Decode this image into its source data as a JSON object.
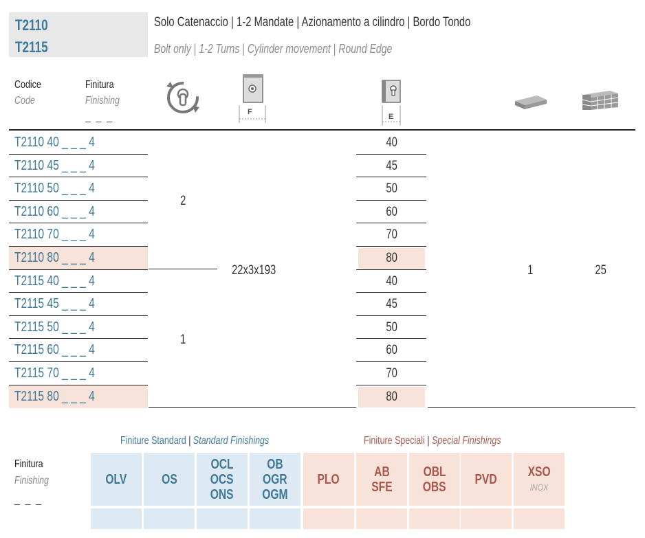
{
  "header": {
    "code_line_1": "T2110",
    "code_line_2": "T2115",
    "title_it": [
      "Solo Catenaccio",
      "1-2 Mandate",
      "Azionamento a cilindro",
      "Bordo Tondo"
    ],
    "title_en": [
      "Bolt only",
      "1-2 Turns",
      "Cylinder movement",
      "Round Edge"
    ],
    "separator": "|"
  },
  "columns": {
    "code_label": "Codice",
    "code_label_en": "Code",
    "finish_label": "Finitura",
    "finish_label_en": "Finishing",
    "finish_blank": "_ _ _",
    "f_label": "F",
    "e_label": "E"
  },
  "rows": [
    {
      "code": "T2110 40 _ _ _ 4",
      "e": "40",
      "highlight": false
    },
    {
      "code": "T2110 45 _ _ _ 4",
      "e": "45",
      "highlight": false
    },
    {
      "code": "T2110 50 _ _ _ 4",
      "e": "50",
      "highlight": false
    },
    {
      "code": "T2110 60 _ _ _ 4",
      "e": "60",
      "highlight": false
    },
    {
      "code": "T2110 70 _ _ _ 4",
      "e": "70",
      "highlight": false
    },
    {
      "code": "T2110 80 _ _ _ 4",
      "e": "80",
      "highlight": true
    },
    {
      "code": "T2115 40 _ _ _ 4",
      "e": "40",
      "highlight": false
    },
    {
      "code": "T2115 45 _ _ _ 4",
      "e": "45",
      "highlight": false
    },
    {
      "code": "T2115 50 _ _ _ 4",
      "e": "50",
      "highlight": false
    },
    {
      "code": "T2115 60 _ _ _ 4",
      "e": "60",
      "highlight": false
    },
    {
      "code": "T2115 70 _ _ _ 4",
      "e": "70",
      "highlight": false
    },
    {
      "code": "T2115 80 _ _ _ 4",
      "e": "80",
      "highlight": true
    }
  ],
  "values": {
    "turns_group1": "2",
    "turns_group2": "1",
    "faceplate": "22x3x193",
    "pack_qty": "1",
    "box_qty": "25"
  },
  "finishes": {
    "label": "Finitura",
    "label_en": "Finishing",
    "blank": "_ _ _",
    "standard_title": "Finiture Standard",
    "standard_title_en": "Standard Finishings",
    "special_title": "Finiture Speciali",
    "special_title_en": "Special Finishings",
    "standard": [
      {
        "lines": [
          "OLV"
        ]
      },
      {
        "lines": [
          "OS"
        ]
      },
      {
        "lines": [
          "OCL",
          "OCS",
          "ONS"
        ]
      },
      {
        "lines": [
          "OB",
          "OGR",
          "OGM"
        ]
      }
    ],
    "special": [
      {
        "lines": [
          "PLO"
        ]
      },
      {
        "lines": [
          "AB",
          "SFE"
        ]
      },
      {
        "lines": [
          "OBL",
          "OBS"
        ]
      },
      {
        "lines": [
          "PVD"
        ]
      },
      {
        "lines": [
          "XSO"
        ],
        "sub": "INOX"
      }
    ]
  },
  "colors": {
    "blue_text": "#3e7896",
    "red_text": "#a9574d",
    "blue_bg": "#deeaf3",
    "pink_bg": "#f7e3da"
  }
}
